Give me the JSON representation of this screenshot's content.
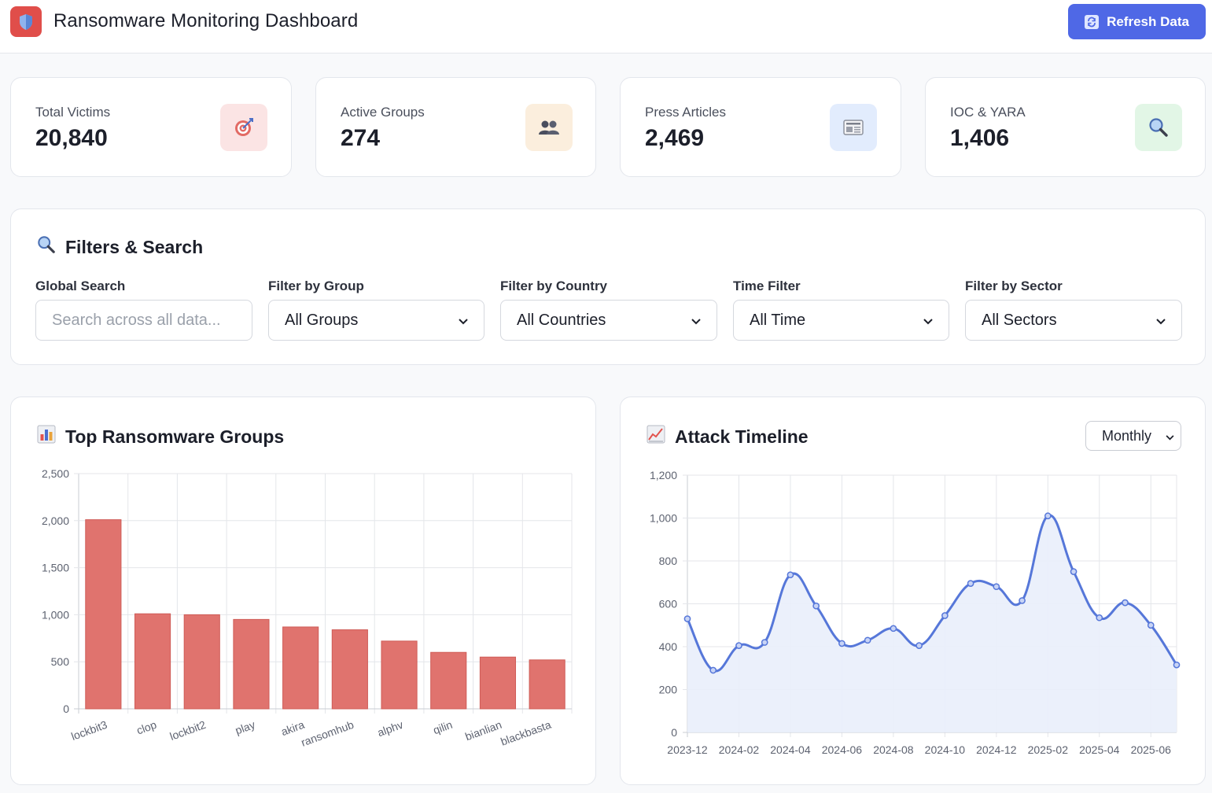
{
  "app": {
    "title": "Ransomware Monitoring Dashboard",
    "refresh_label": "Refresh Data"
  },
  "stats": [
    {
      "label": "Total Victims",
      "value": "20,840",
      "icon": "target-icon",
      "bg": "#fbe4e4"
    },
    {
      "label": "Active Groups",
      "value": "274",
      "icon": "users-icon",
      "bg": "#fbeedd"
    },
    {
      "label": "Press Articles",
      "value": "2,469",
      "icon": "newspaper-icon",
      "bg": "#e2ecfd"
    },
    {
      "label": "IOC & YARA",
      "value": "1,406",
      "icon": "magnifier-icon",
      "bg": "#e2f6e6"
    }
  ],
  "filters": {
    "title": "Filters & Search",
    "search": {
      "label": "Global Search",
      "placeholder": "Search across all data..."
    },
    "group": {
      "label": "Filter by Group",
      "value": "All Groups"
    },
    "country": {
      "label": "Filter by Country",
      "value": "All Countries"
    },
    "time": {
      "label": "Time Filter",
      "value": "All Time"
    },
    "sector": {
      "label": "Filter by Sector",
      "value": "All Sectors"
    }
  },
  "charts": {
    "groups_title": "Top Ransomware Groups",
    "timeline_title": "Attack Timeline",
    "timeline_period": "Monthly"
  },
  "colors": {
    "accent": "#4f68e6",
    "bar": "#e0736e",
    "line": "#5677d9",
    "area": "#e9eefb"
  },
  "chart_data": [
    {
      "type": "bar",
      "title": "Top Ransomware Groups",
      "categories": [
        "lockbit3",
        "clop",
        "lockbit2",
        "play",
        "akira",
        "ransomhub",
        "alphv",
        "qilin",
        "bianlian",
        "blackbasta"
      ],
      "values": [
        2010,
        1010,
        1000,
        950,
        870,
        840,
        720,
        600,
        550,
        520
      ],
      "ylim": [
        0,
        2500
      ],
      "yticks": [
        "0",
        "500",
        "1,000",
        "1,500",
        "2,000",
        "2,500"
      ],
      "grid": true
    },
    {
      "type": "area",
      "title": "Attack Timeline",
      "x": [
        "2023-12",
        "2024-01",
        "2024-02",
        "2024-03",
        "2024-04",
        "2024-05",
        "2024-06",
        "2024-07",
        "2024-08",
        "2024-09",
        "2024-10",
        "2024-11",
        "2024-12",
        "2025-01",
        "2025-02",
        "2025-03",
        "2025-04",
        "2025-05",
        "2025-06",
        "2025-07"
      ],
      "x_tick_labels": [
        "2023-12",
        "2024-02",
        "2024-04",
        "2024-06",
        "2024-08",
        "2024-10",
        "2024-12",
        "2025-02",
        "2025-04",
        "2025-06"
      ],
      "values": [
        530,
        290,
        405,
        420,
        735,
        590,
        415,
        430,
        485,
        405,
        545,
        695,
        680,
        615,
        1010,
        750,
        535,
        605,
        500,
        315
      ],
      "ylim": [
        0,
        1200
      ],
      "yticks": [
        "0",
        "200",
        "400",
        "600",
        "800",
        "1,000",
        "1,200"
      ],
      "grid": true
    }
  ]
}
